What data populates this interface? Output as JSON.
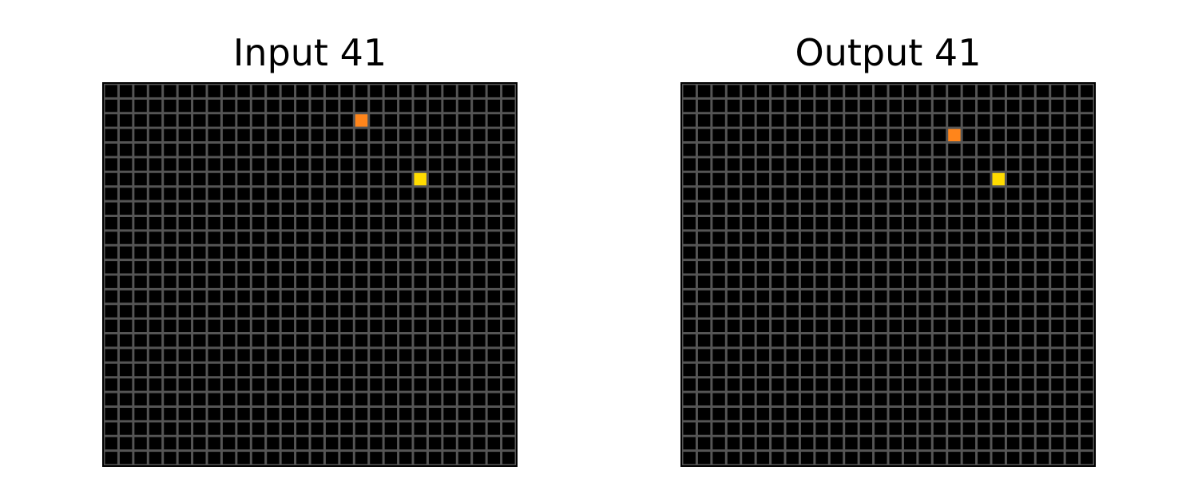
{
  "panels": [
    {
      "title": "Input 41",
      "rows": 26,
      "cols": 28,
      "background_color": "#000000",
      "grid_line_color": "#555555",
      "cells": [
        {
          "row": 2,
          "col": 17,
          "color": "#FF851B"
        },
        {
          "row": 6,
          "col": 21,
          "color": "#FFDC00"
        }
      ]
    },
    {
      "title": "Output 41",
      "rows": 26,
      "cols": 28,
      "background_color": "#000000",
      "grid_line_color": "#555555",
      "cells": [
        {
          "row": 3,
          "col": 18,
          "color": "#FF851B"
        },
        {
          "row": 6,
          "col": 21,
          "color": "#FFDC00"
        }
      ]
    }
  ]
}
